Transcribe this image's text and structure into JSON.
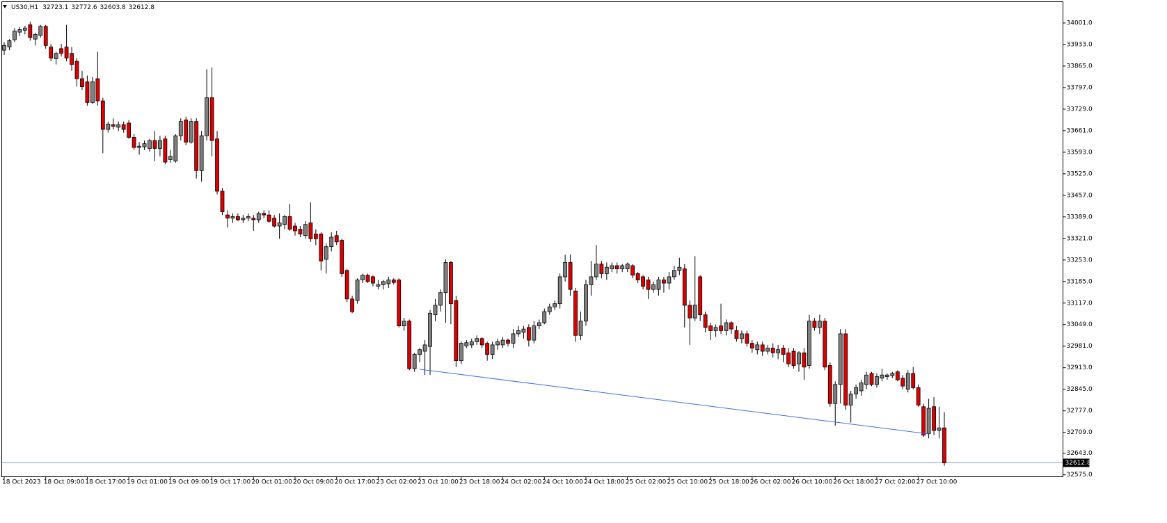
{
  "chart_data": {
    "type": "candlestick",
    "symbol": "US30,H1",
    "ylim": [
      32570,
      34069
    ],
    "yticks": [
      {
        "value": 32575,
        "label": "32575.0"
      },
      {
        "value": 32643,
        "label": "32643.0"
      },
      {
        "value": 32709,
        "label": "32709.0"
      },
      {
        "value": 32777,
        "label": "32777.0"
      },
      {
        "value": 32845,
        "label": "32845.0"
      },
      {
        "value": 32913,
        "label": "32913.0"
      },
      {
        "value": 32981,
        "label": "32981.0"
      },
      {
        "value": 33049,
        "label": "33049.0"
      },
      {
        "value": 33117,
        "label": "33117.0"
      },
      {
        "value": 33185,
        "label": "33185.0"
      },
      {
        "value": 33253,
        "label": "33253.0"
      },
      {
        "value": 33321,
        "label": "33321.0"
      },
      {
        "value": 33389,
        "label": "33389.0"
      },
      {
        "value": 33457,
        "label": "33457.0"
      },
      {
        "value": 33525,
        "label": "33525.0"
      },
      {
        "value": 33593,
        "label": "33593.0"
      },
      {
        "value": 33661,
        "label": "33661.0"
      },
      {
        "value": 33729,
        "label": "33729.0"
      },
      {
        "value": 33797,
        "label": "33797.0"
      },
      {
        "value": 33865,
        "label": "33865.0"
      },
      {
        "value": 33933,
        "label": "33933.0"
      },
      {
        "value": 34001,
        "label": "34001.0"
      }
    ],
    "up_color": "#808080",
    "down_color": "#dd0000",
    "outline_color": "#000000",
    "trendline_color": "#3a6cf0",
    "price_line_color": "#7f9fbf",
    "trendline": {
      "x": [
        80,
        178
      ],
      "values": [
        32908,
        32704
      ]
    },
    "categories": [
      "18 Oct 2023",
      null,
      null,
      null,
      null,
      null,
      null,
      null,
      "18 Oct 09:00",
      null,
      null,
      null,
      null,
      null,
      null,
      null,
      "18 Oct 17:00",
      null,
      null,
      null,
      null,
      null,
      null,
      null,
      "19 Oct 01:00",
      null,
      null,
      null,
      null,
      null,
      null,
      null,
      "19 Oct 09:00",
      null,
      null,
      null,
      null,
      null,
      null,
      null,
      "19 Oct 17:00",
      null,
      null,
      null,
      null,
      null,
      null,
      null,
      "20 Oct 01:00",
      null,
      null,
      null,
      null,
      null,
      null,
      null,
      "20 Oct 09:00",
      null,
      null,
      null,
      null,
      null,
      null,
      null,
      "20 Oct 17:00",
      null,
      null,
      null,
      null,
      null,
      null,
      null,
      "23 Oct 02:00",
      null,
      null,
      null,
      null,
      null,
      null,
      null,
      "23 Oct 10:00",
      null,
      null,
      null,
      null,
      null,
      null,
      null,
      "23 Oct 18:00",
      null,
      null,
      null,
      null,
      null,
      null,
      null,
      "24 Oct 02:00",
      null,
      null,
      null,
      null,
      null,
      null,
      null,
      "24 Oct 10:00",
      null,
      null,
      null,
      null,
      null,
      null,
      null,
      "24 Oct 18:00",
      null,
      null,
      null,
      null,
      null,
      null,
      null,
      "25 Oct 02:00",
      null,
      null,
      null,
      null,
      null,
      null,
      null,
      "25 Oct 10:00",
      null,
      null,
      null,
      null,
      null,
      null,
      null,
      "25 Oct 18:00",
      null,
      null,
      null,
      null,
      null,
      null,
      null,
      "26 Oct 02:00",
      null,
      null,
      null,
      null,
      null,
      null,
      null,
      "26 Oct 10:00",
      null,
      null,
      null,
      null,
      null,
      null,
      null,
      "26 Oct 18:00",
      null,
      null,
      null,
      null,
      null,
      null,
      null,
      "27 Oct 02:00",
      null,
      null,
      null,
      null,
      null,
      null,
      null,
      "27 Oct 10:00",
      null,
      null,
      null,
      null,
      null
    ],
    "ohlc": [
      [
        33915,
        33940,
        33900,
        33930
      ],
      [
        33925,
        33950,
        33915,
        33945
      ],
      [
        33948,
        33985,
        33940,
        33975
      ],
      [
        33972,
        33988,
        33960,
        33980
      ],
      [
        33978,
        33992,
        33965,
        33985
      ],
      [
        33995,
        34005,
        33945,
        33955
      ],
      [
        33950,
        33970,
        33930,
        33965
      ],
      [
        33962,
        33995,
        33955,
        33990
      ],
      [
        33990,
        33995,
        33920,
        33930
      ],
      [
        33925,
        33935,
        33880,
        33890
      ],
      [
        33888,
        33910,
        33870,
        33905
      ],
      [
        33920,
        33935,
        33895,
        33905
      ],
      [
        33925,
        33995,
        33880,
        33890
      ],
      [
        33905,
        33925,
        33850,
        33870
      ],
      [
        33880,
        33890,
        33800,
        33825
      ],
      [
        33825,
        33850,
        33790,
        33800
      ],
      [
        33815,
        33835,
        33740,
        33750
      ],
      [
        33750,
        33830,
        33745,
        33815
      ],
      [
        33825,
        33910,
        33740,
        33755
      ],
      [
        33755,
        33765,
        33590,
        33665
      ],
      [
        33665,
        33690,
        33655,
        33682
      ],
      [
        33680,
        33700,
        33665,
        33675
      ],
      [
        33672,
        33690,
        33660,
        33680
      ],
      [
        33680,
        33690,
        33655,
        33665
      ],
      [
        33685,
        33695,
        33635,
        33640
      ],
      [
        33640,
        33650,
        33600,
        33608
      ],
      [
        33608,
        33625,
        33585,
        33612
      ],
      [
        33610,
        33630,
        33600,
        33620
      ],
      [
        33605,
        33635,
        33595,
        33630
      ],
      [
        33630,
        33660,
        33565,
        33605
      ],
      [
        33605,
        33645,
        33580,
        33630
      ],
      [
        33635,
        33645,
        33555,
        33562
      ],
      [
        33570,
        33600,
        33560,
        33580
      ],
      [
        33565,
        33650,
        33560,
        33645
      ],
      [
        33645,
        33700,
        33630,
        33690
      ],
      [
        33695,
        33705,
        33615,
        33625
      ],
      [
        33625,
        33700,
        33620,
        33690
      ],
      [
        33690,
        33700,
        33510,
        33535
      ],
      [
        33535,
        33660,
        33500,
        33645
      ],
      [
        33645,
        33855,
        33630,
        33765
      ],
      [
        33765,
        33860,
        33580,
        33630
      ],
      [
        33635,
        33660,
        33460,
        33470
      ],
      [
        33470,
        33480,
        33395,
        33405
      ],
      [
        33395,
        33410,
        33355,
        33385
      ],
      [
        33385,
        33400,
        33370,
        33390
      ],
      [
        33390,
        33400,
        33375,
        33380
      ],
      [
        33380,
        33395,
        33370,
        33385
      ],
      [
        33385,
        33400,
        33375,
        33390
      ],
      [
        33385,
        33395,
        33345,
        33380
      ],
      [
        33380,
        33405,
        33370,
        33400
      ],
      [
        33400,
        33410,
        33385,
        33395
      ],
      [
        33395,
        33410,
        33370,
        33375
      ],
      [
        33385,
        33395,
        33355,
        33360
      ],
      [
        33360,
        33400,
        33320,
        33370
      ],
      [
        33365,
        33395,
        33350,
        33390
      ],
      [
        33390,
        33430,
        33345,
        33350
      ],
      [
        33360,
        33370,
        33330,
        33345
      ],
      [
        33350,
        33360,
        33325,
        33335
      ],
      [
        33330,
        33375,
        33320,
        33365
      ],
      [
        33370,
        33435,
        33310,
        33320
      ],
      [
        33335,
        33350,
        33300,
        33320
      ],
      [
        33335,
        33340,
        33220,
        33250
      ],
      [
        33255,
        33305,
        33210,
        33295
      ],
      [
        33295,
        33340,
        33280,
        33325
      ],
      [
        33330,
        33345,
        33300,
        33310
      ],
      [
        33315,
        33320,
        33200,
        33210
      ],
      [
        33220,
        33225,
        33120,
        33130
      ],
      [
        33130,
        33140,
        33085,
        33090
      ],
      [
        33125,
        33195,
        33115,
        33190
      ],
      [
        33190,
        33210,
        33180,
        33205
      ],
      [
        33205,
        33210,
        33180,
        33185
      ],
      [
        33200,
        33205,
        33170,
        33180
      ],
      [
        33170,
        33190,
        33160,
        33175
      ],
      [
        33175,
        33190,
        33160,
        33185
      ],
      [
        33178,
        33200,
        33165,
        33190
      ],
      [
        33190,
        33195,
        33175,
        33182
      ],
      [
        33190,
        33195,
        33040,
        33045
      ],
      [
        33045,
        33070,
        33030,
        33060
      ],
      [
        33060,
        33065,
        32905,
        32910
      ],
      [
        32910,
        32960,
        32900,
        32955
      ],
      [
        32955,
        32975,
        32930,
        32970
      ],
      [
        32965,
        33000,
        32890,
        32985
      ],
      [
        32980,
        33095,
        32890,
        33085
      ],
      [
        33080,
        33130,
        33060,
        33110
      ],
      [
        33110,
        33160,
        33090,
        33150
      ],
      [
        33150,
        33255,
        33055,
        33245
      ],
      [
        33245,
        33250,
        33050,
        33115
      ],
      [
        33125,
        33140,
        32915,
        32935
      ],
      [
        32935,
        32995,
        32925,
        32990
      ],
      [
        32982,
        33000,
        32975,
        32992
      ],
      [
        32985,
        33005,
        32975,
        32995
      ],
      [
        32995,
        33015,
        32985,
        33005
      ],
      [
        33005,
        33010,
        32975,
        32985
      ],
      [
        32990,
        32995,
        32935,
        32955
      ],
      [
        32955,
        32995,
        32940,
        32985
      ],
      [
        32985,
        33005,
        32970,
        32995
      ],
      [
        32985,
        33010,
        32975,
        33000
      ],
      [
        33000,
        33005,
        32980,
        32990
      ],
      [
        32990,
        33035,
        32975,
        33020
      ],
      [
        33020,
        33045,
        33010,
        33030
      ],
      [
        33025,
        33045,
        33005,
        33035
      ],
      [
        33040,
        33050,
        32980,
        33000
      ],
      [
        33000,
        33060,
        32990,
        33045
      ],
      [
        33045,
        33065,
        33035,
        33055
      ],
      [
        33055,
        33100,
        33050,
        33090
      ],
      [
        33090,
        33115,
        33080,
        33105
      ],
      [
        33105,
        33125,
        33095,
        33115
      ],
      [
        33115,
        33210,
        33100,
        33200
      ],
      [
        33200,
        33270,
        33185,
        33245
      ],
      [
        33245,
        33270,
        33140,
        33160
      ],
      [
        33155,
        33165,
        32995,
        33015
      ],
      [
        33015,
        33090,
        33000,
        33060
      ],
      [
        33060,
        33190,
        33045,
        33175
      ],
      [
        33175,
        33250,
        33140,
        33200
      ],
      [
        33200,
        33300,
        33190,
        33240
      ],
      [
        33240,
        33250,
        33195,
        33210
      ],
      [
        33210,
        33245,
        33190,
        33230
      ],
      [
        33225,
        33245,
        33215,
        33235
      ],
      [
        33235,
        33245,
        33210,
        33225
      ],
      [
        33225,
        33240,
        33215,
        33235
      ],
      [
        33225,
        33245,
        33215,
        33240
      ],
      [
        33235,
        33240,
        33195,
        33205
      ],
      [
        33210,
        33215,
        33180,
        33190
      ],
      [
        33200,
        33205,
        33160,
        33170
      ],
      [
        33190,
        33200,
        33130,
        33160
      ],
      [
        33160,
        33185,
        33150,
        33175
      ],
      [
        33160,
        33200,
        33140,
        33190
      ],
      [
        33190,
        33200,
        33150,
        33180
      ],
      [
        33180,
        33215,
        33160,
        33200
      ],
      [
        33200,
        33235,
        33190,
        33220
      ],
      [
        33220,
        33260,
        33205,
        33230
      ],
      [
        33225,
        33240,
        33040,
        33110
      ],
      [
        33110,
        33125,
        32985,
        33070
      ],
      [
        33070,
        33265,
        33060,
        33110
      ],
      [
        33200,
        33205,
        33060,
        33080
      ],
      [
        33080,
        33090,
        33025,
        33040
      ],
      [
        33045,
        33055,
        33000,
        33030
      ],
      [
        33030,
        33050,
        33010,
        33040
      ],
      [
        33045,
        33115,
        33020,
        33030
      ],
      [
        33030,
        33065,
        33015,
        33055
      ],
      [
        33055,
        33060,
        33020,
        33035
      ],
      [
        33030,
        33045,
        32995,
        33005
      ],
      [
        33005,
        33030,
        32990,
        33020
      ],
      [
        33020,
        33030,
        32980,
        32990
      ],
      [
        32990,
        33000,
        32960,
        32975
      ],
      [
        32970,
        32995,
        32955,
        32985
      ],
      [
        32985,
        32995,
        32950,
        32965
      ],
      [
        32965,
        32985,
        32955,
        32975
      ],
      [
        32975,
        32990,
        32945,
        32960
      ],
      [
        32960,
        32985,
        32940,
        32970
      ],
      [
        32975,
        32985,
        32930,
        32955
      ],
      [
        32960,
        32975,
        32915,
        32925
      ],
      [
        32965,
        32975,
        32910,
        32920
      ],
      [
        32925,
        32965,
        32900,
        32960
      ],
      [
        32960,
        32975,
        32875,
        32915
      ],
      [
        32920,
        33080,
        32910,
        33060
      ],
      [
        33060,
        33070,
        33030,
        33040
      ],
      [
        33040,
        33080,
        33020,
        33060
      ],
      [
        33060,
        33070,
        32905,
        32915
      ],
      [
        32920,
        32930,
        32790,
        32800
      ],
      [
        32800,
        32870,
        32730,
        32860
      ],
      [
        32860,
        33035,
        32800,
        33020
      ],
      [
        33020,
        33035,
        32780,
        32795
      ],
      [
        32795,
        32840,
        32740,
        32830
      ],
      [
        32830,
        32860,
        32815,
        32850
      ],
      [
        32840,
        32875,
        32825,
        32865
      ],
      [
        32860,
        32900,
        32845,
        32890
      ],
      [
        32895,
        32900,
        32855,
        32860
      ],
      [
        32860,
        32895,
        32850,
        32885
      ],
      [
        32880,
        32910,
        32870,
        32890
      ],
      [
        32885,
        32895,
        32875,
        32890
      ],
      [
        32888,
        32900,
        32880,
        32895
      ],
      [
        32900,
        32905,
        32870,
        32875
      ],
      [
        32880,
        32890,
        32845,
        32855
      ],
      [
        32845,
        32905,
        32835,
        32895
      ],
      [
        32895,
        32915,
        32845,
        32850
      ],
      [
        32850,
        32860,
        32790,
        32795
      ],
      [
        32790,
        32800,
        32695,
        32700
      ],
      [
        32705,
        32815,
        32690,
        32785
      ],
      [
        32790,
        32820,
        32700,
        32715
      ],
      [
        32715,
        32790,
        32690,
        32723.1
      ],
      [
        32723.1,
        32772.6,
        32603.8,
        32612.8
      ]
    ]
  }
}
